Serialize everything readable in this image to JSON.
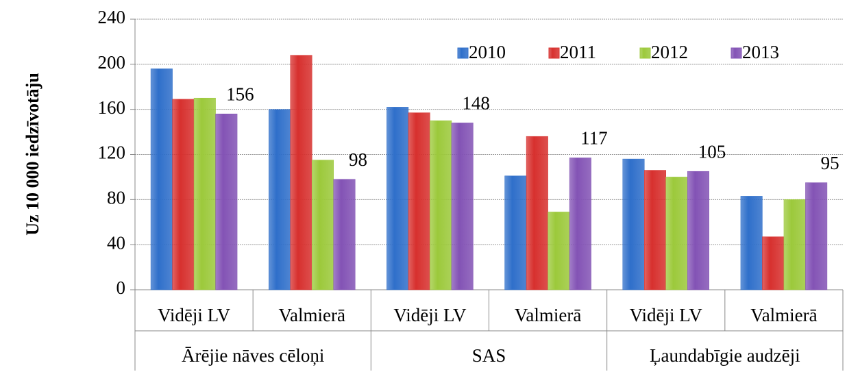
{
  "chart_data": {
    "type": "bar",
    "y_label": "Uz 10 000 iedzīvotāju",
    "categories": [
      "Vidēji LV",
      "Valmierā",
      "Vidēji LV",
      "Valmierā",
      "Vidēji LV",
      "Valmierā"
    ],
    "category_groups": [
      "Ārējie nāves cēloņi",
      "SAS",
      "Ļaundabīgie audzēji"
    ],
    "series": [
      {
        "name": "2010",
        "color": "#2f6fca",
        "values": [
          196,
          160,
          162,
          101,
          116,
          83
        ]
      },
      {
        "name": "2011",
        "color": "#d7302e",
        "values": [
          169,
          208,
          157,
          136,
          106,
          47
        ]
      },
      {
        "name": "2012",
        "color": "#9cc93b",
        "values": [
          170,
          115,
          150,
          69,
          100,
          80
        ]
      },
      {
        "name": "2013",
        "color": "#8353b5",
        "values": [
          156,
          98,
          148,
          117,
          105,
          95
        ],
        "data_labels": true
      }
    ],
    "ylim": [
      0,
      240
    ],
    "yticks": [
      0,
      40,
      80,
      120,
      160,
      200,
      240
    ],
    "grid": true,
    "legend": "upper right"
  }
}
